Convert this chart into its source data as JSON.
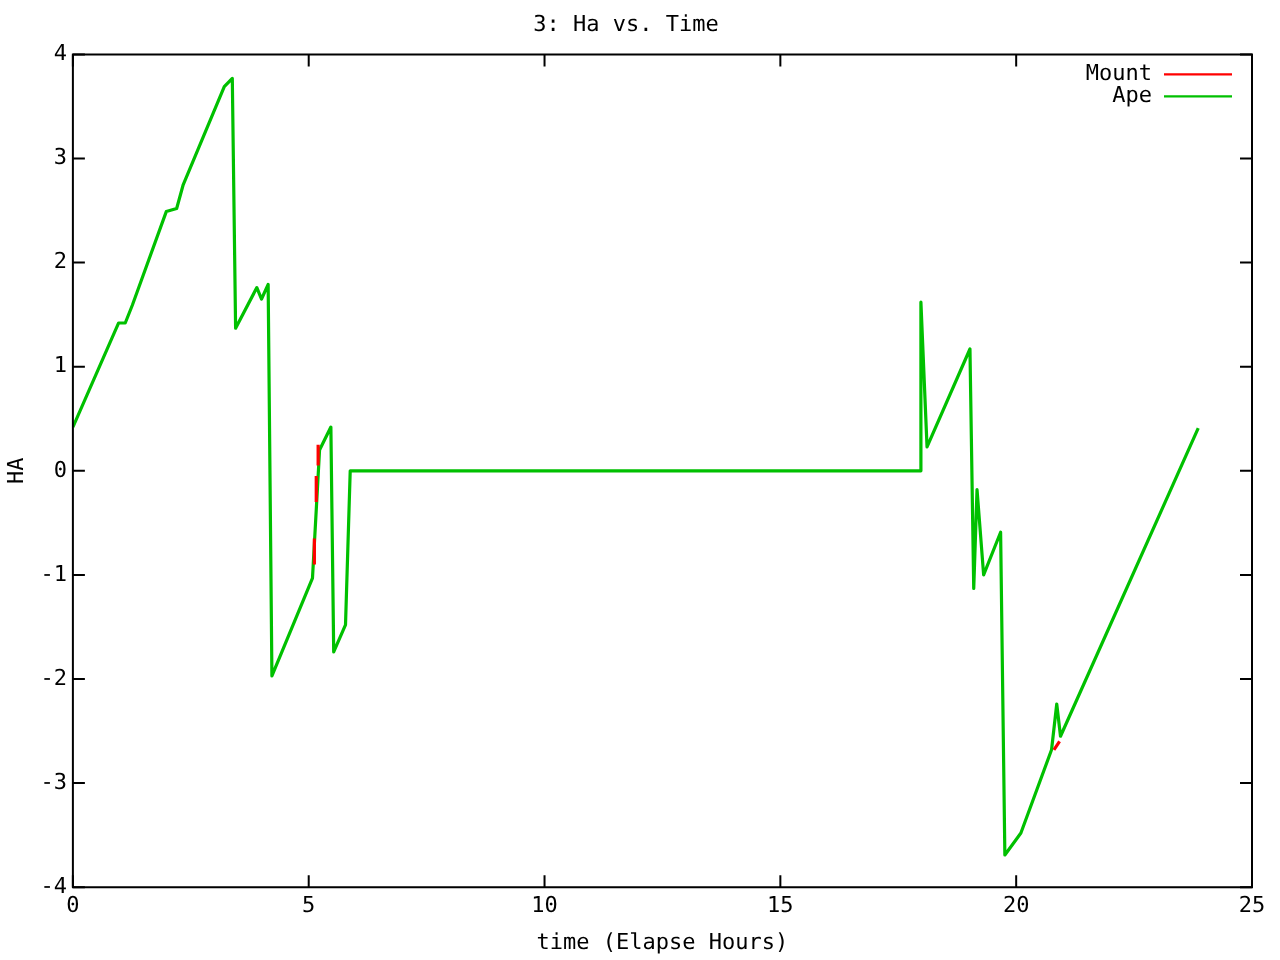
{
  "chart_data": {
    "type": "line",
    "title": "3: Ha vs. Time",
    "xlabel": "time (Elapse Hours)",
    "ylabel": "HA",
    "xlim": [
      0,
      25
    ],
    "xticks": [
      0,
      5,
      10,
      15,
      20,
      25
    ],
    "ylim": [
      -4,
      4
    ],
    "yticks": [
      -4,
      -3,
      -2,
      -1,
      0,
      1,
      2,
      3,
      4
    ],
    "grid": false,
    "legend": "top right",
    "marker": "none",
    "line_style": "solid",
    "series": [
      {
        "name": "Mount",
        "color": "#ff0000",
        "x": [
          5.12,
          5.12,
          null,
          5.16,
          5.16,
          null,
          5.2,
          5.2,
          null,
          20.8,
          20.92
        ],
        "values": [
          -0.9,
          -0.65,
          null,
          -0.3,
          -0.05,
          null,
          0.05,
          0.25,
          null,
          -2.68,
          -2.6
        ]
      },
      {
        "name": "Ape",
        "color": "#00c000",
        "x": [
          0,
          0.97,
          1.11,
          1.26,
          1.98,
          2.2,
          2.34,
          3.21,
          3.38,
          3.45,
          3.9,
          4.0,
          4.14,
          4.22,
          5.08,
          5.23,
          5.47,
          5.53,
          5.78,
          5.88,
          17.97,
          17.98,
          18.11,
          19.02,
          19.1,
          19.17,
          19.31,
          19.67,
          19.76,
          20.1,
          20.75,
          20.86,
          20.94,
          23.86
        ],
        "values": [
          0.42,
          1.42,
          1.42,
          1.59,
          2.49,
          2.52,
          2.75,
          3.69,
          3.77,
          1.37,
          1.76,
          1.65,
          1.79,
          -1.97,
          -1.03,
          0.2,
          0.42,
          -1.74,
          -1.48,
          0,
          0,
          1.62,
          0.23,
          1.17,
          -1.13,
          -0.18,
          -1.0,
          -0.59,
          -3.69,
          -3.48,
          -2.68,
          -2.24,
          -2.55,
          0.41
        ]
      }
    ]
  }
}
